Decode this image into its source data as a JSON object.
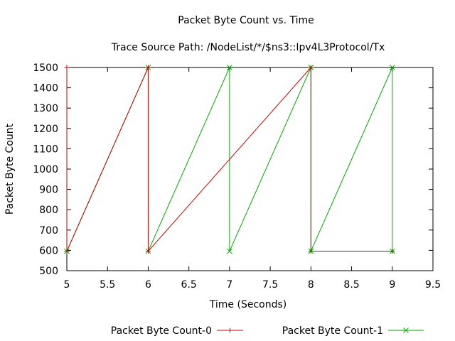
{
  "chart_data": {
    "type": "line",
    "title": "Packet Byte Count vs. Time",
    "subtitle": "Trace Source Path: /NodeList/*/$ns3::Ipv4L3Protocol/Tx",
    "xlabel": "Time (Seconds)",
    "ylabel": "Packet Byte Count",
    "xlim": [
      5,
      9.5
    ],
    "ylim": [
      500,
      1500
    ],
    "xticks": [
      5,
      5.5,
      6,
      6.5,
      7,
      7.5,
      8,
      8.5,
      9,
      9.5
    ],
    "xtick_labels": [
      "5",
      "5.5",
      "6",
      "6.5",
      "7",
      "7.5",
      "8",
      "8.5",
      "9",
      "9.5"
    ],
    "yticks": [
      500,
      600,
      700,
      800,
      900,
      1000,
      1100,
      1200,
      1300,
      1400,
      1500
    ],
    "ytick_labels": [
      "500",
      "600",
      "700",
      "800",
      "900",
      "1000",
      "1100",
      "1200",
      "1300",
      "1400",
      "1500"
    ],
    "grid": false,
    "legend_position": "bottom",
    "series": [
      {
        "name": "Packet Byte Count-0",
        "color": "#cc0000",
        "marker": "plus",
        "x": [
          5,
          5,
          6,
          6,
          8,
          8,
          9
        ],
        "y": [
          1500,
          596,
          1500,
          596,
          1500,
          596,
          596
        ]
      },
      {
        "name": "Packet Byte Count-1",
        "color": "#00aa00",
        "marker": "cross",
        "x": [
          5,
          6,
          6,
          7,
          7,
          8,
          8,
          9,
          9
        ],
        "y": [
          596,
          1500,
          596,
          1500,
          596,
          1500,
          596,
          1500,
          596
        ]
      }
    ]
  }
}
